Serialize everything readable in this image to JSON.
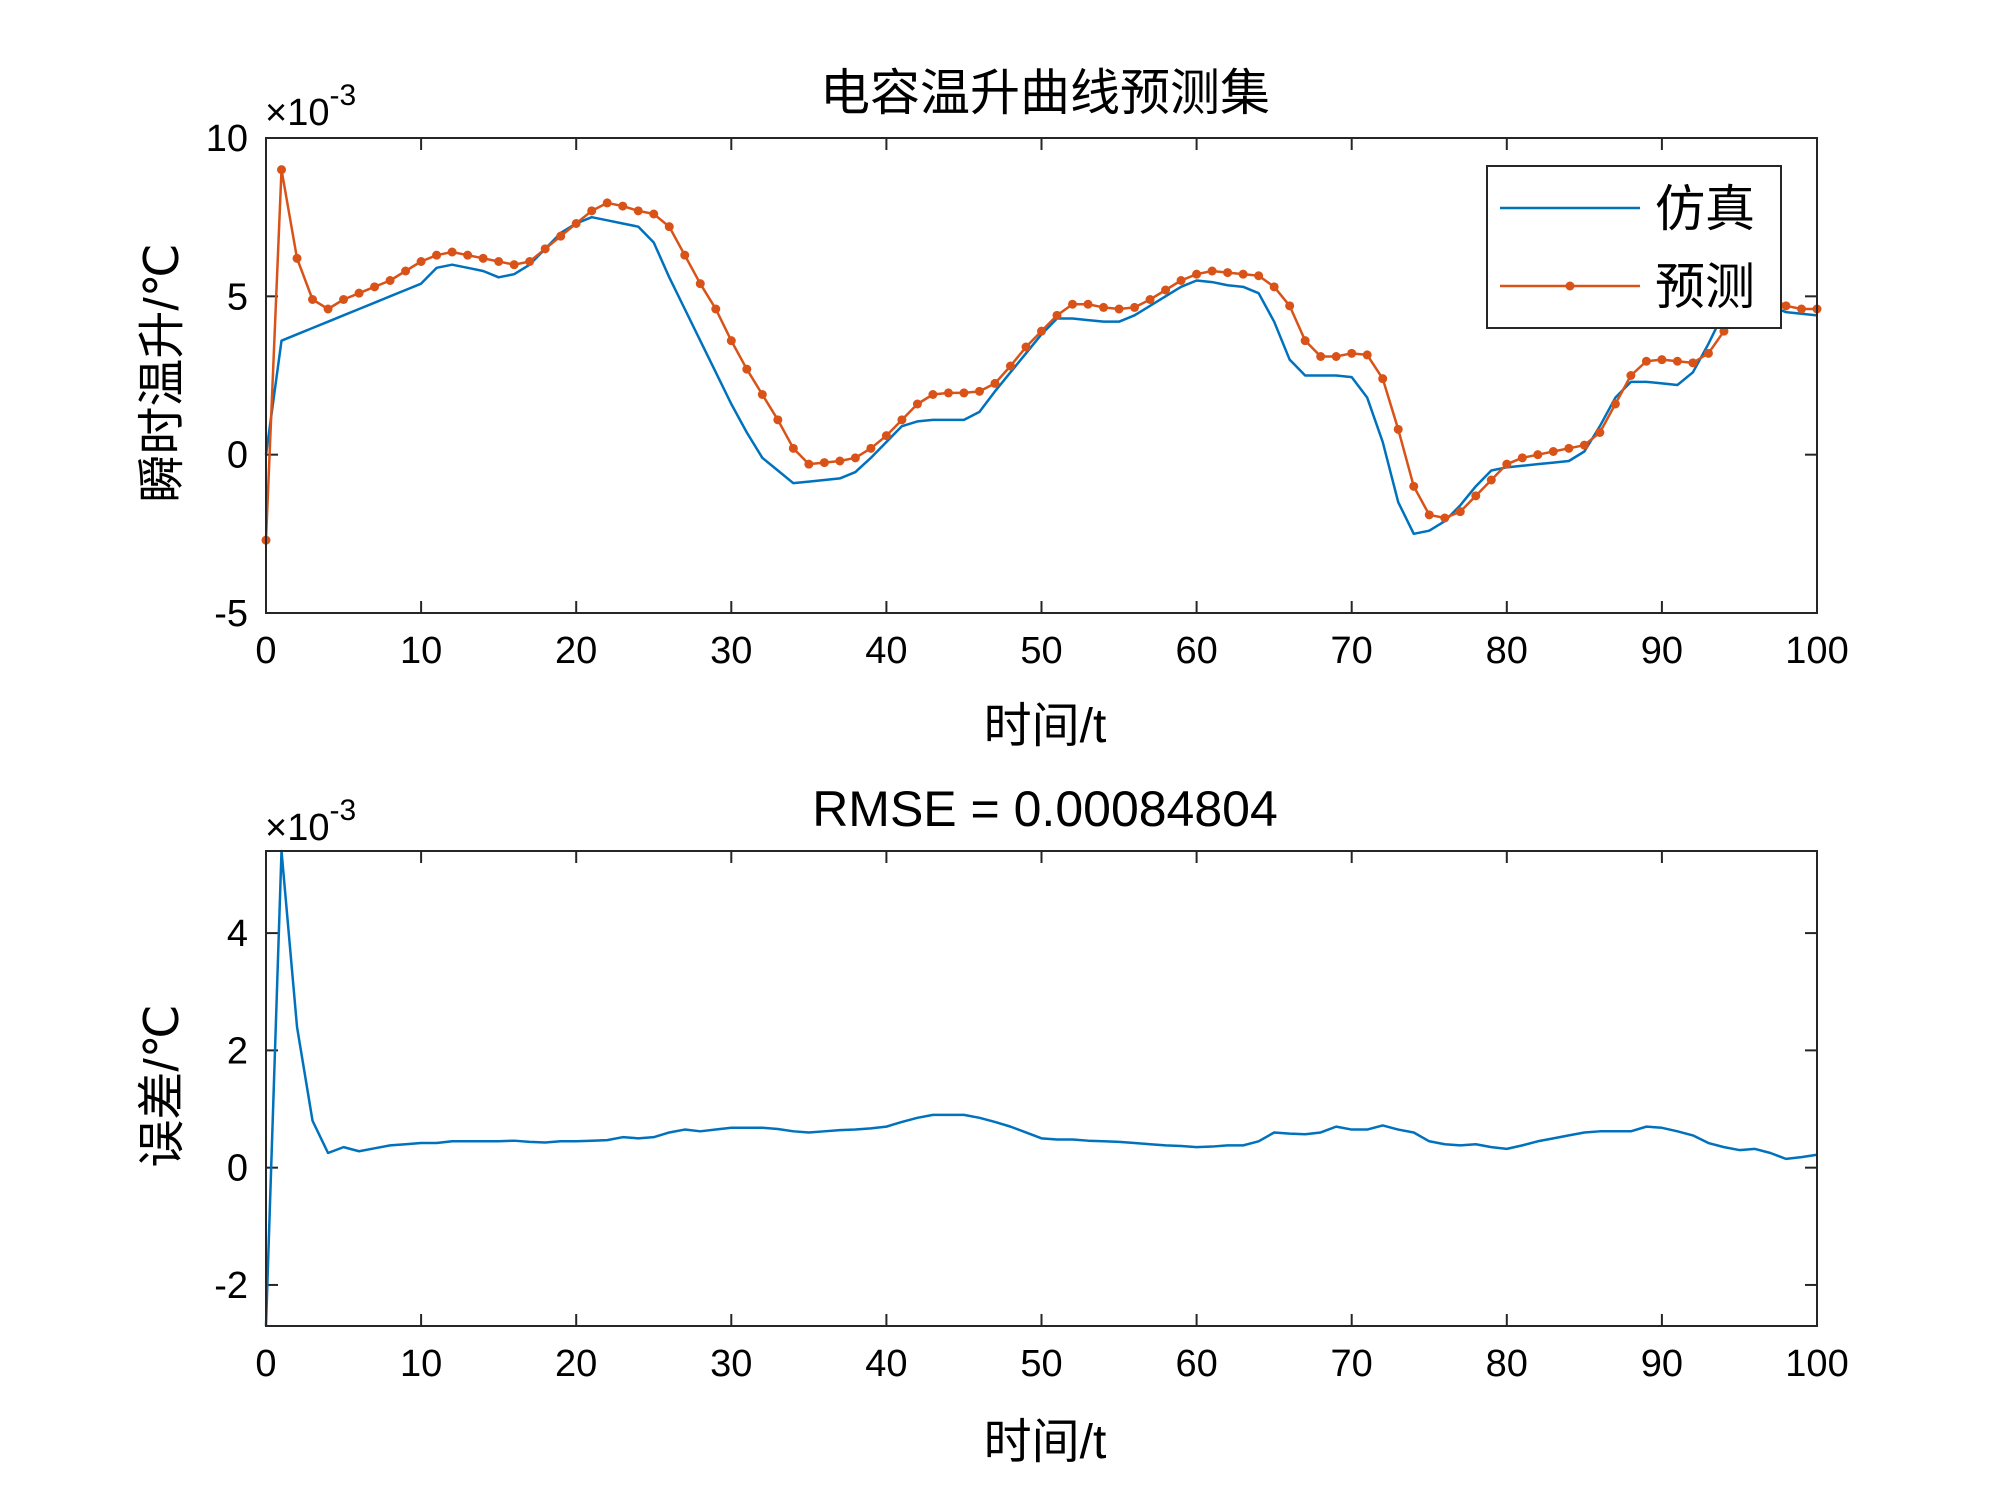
{
  "chart_data": [
    {
      "type": "line",
      "title": "电容温升曲线预测集",
      "xlabel": "时间/t",
      "ylabel": "瞬时温升/℃",
      "xlim": [
        0,
        100
      ],
      "ylim": [
        -5,
        10
      ],
      "y_scale_label": "×10",
      "y_scale_exponent": "-3",
      "xticks": [
        "0",
        "10",
        "20",
        "30",
        "40",
        "50",
        "60",
        "70",
        "80",
        "90",
        "100"
      ],
      "yticks": [
        "-5",
        "0",
        "5",
        "10"
      ],
      "legend": {
        "position": "top-right",
        "entries": [
          "仿真",
          "预测"
        ]
      },
      "x": [
        0,
        1,
        2,
        3,
        4,
        5,
        6,
        7,
        8,
        9,
        10,
        11,
        12,
        13,
        14,
        15,
        16,
        17,
        18,
        19,
        20,
        21,
        22,
        23,
        24,
        25,
        26,
        27,
        28,
        29,
        30,
        31,
        32,
        33,
        34,
        35,
        36,
        37,
        38,
        39,
        40,
        41,
        42,
        43,
        44,
        45,
        46,
        47,
        48,
        49,
        50,
        51,
        52,
        53,
        54,
        55,
        56,
        57,
        58,
        59,
        60,
        61,
        62,
        63,
        64,
        65,
        66,
        67,
        68,
        69,
        70,
        71,
        72,
        73,
        74,
        75,
        76,
        77,
        78,
        79,
        80,
        81,
        82,
        83,
        84,
        85,
        86,
        87,
        88,
        89,
        90,
        91,
        92,
        93,
        94,
        95,
        96,
        97,
        98,
        99,
        100
      ],
      "series": [
        {
          "name": "仿真",
          "color": "#0072BD",
          "values": [
            0.0,
            3.6,
            3.8,
            4.0,
            4.2,
            4.4,
            4.6,
            4.8,
            5.0,
            5.2,
            5.4,
            5.9,
            6.0,
            5.9,
            5.8,
            5.6,
            5.7,
            6.0,
            6.5,
            7.0,
            7.3,
            7.5,
            7.4,
            7.3,
            7.2,
            6.7,
            5.6,
            4.6,
            3.6,
            2.6,
            1.6,
            0.7,
            -0.1,
            -0.5,
            -0.9,
            -0.85,
            -0.8,
            -0.75,
            -0.55,
            -0.1,
            0.4,
            0.9,
            1.05,
            1.1,
            1.1,
            1.1,
            1.35,
            2.0,
            2.6,
            3.2,
            3.8,
            4.3,
            4.3,
            4.25,
            4.2,
            4.2,
            4.4,
            4.7,
            5.0,
            5.3,
            5.5,
            5.45,
            5.35,
            5.3,
            5.1,
            4.2,
            3.0,
            2.5,
            2.5,
            2.5,
            2.45,
            1.8,
            0.4,
            -1.5,
            -2.5,
            -2.4,
            -2.1,
            -1.6,
            -1.0,
            -0.5,
            -0.4,
            -0.35,
            -0.3,
            -0.25,
            -0.2,
            0.1,
            0.9,
            1.8,
            2.3,
            2.3,
            2.25,
            2.2,
            2.6,
            3.5,
            4.5,
            4.8,
            4.8,
            4.7,
            4.5,
            4.45,
            4.4
          ]
        },
        {
          "name": "预测",
          "color": "#D95319",
          "values": [
            -2.7,
            9.0,
            6.2,
            4.9,
            4.6,
            4.9,
            5.1,
            5.3,
            5.5,
            5.8,
            6.1,
            6.3,
            6.4,
            6.3,
            6.2,
            6.1,
            6.0,
            6.1,
            6.5,
            6.9,
            7.3,
            7.7,
            7.95,
            7.85,
            7.7,
            7.6,
            7.2,
            6.3,
            5.4,
            4.6,
            3.6,
            2.7,
            1.9,
            1.1,
            0.2,
            -0.3,
            -0.25,
            -0.2,
            -0.1,
            0.2,
            0.6,
            1.1,
            1.6,
            1.9,
            1.95,
            1.95,
            2.0,
            2.25,
            2.8,
            3.4,
            3.9,
            4.4,
            4.75,
            4.75,
            4.65,
            4.6,
            4.65,
            4.9,
            5.2,
            5.5,
            5.7,
            5.8,
            5.75,
            5.7,
            5.65,
            5.3,
            4.7,
            3.6,
            3.1,
            3.1,
            3.2,
            3.15,
            2.4,
            0.8,
            -1.0,
            -1.9,
            -2.0,
            -1.8,
            -1.3,
            -0.8,
            -0.3,
            -0.1,
            0.0,
            0.1,
            0.2,
            0.3,
            0.7,
            1.6,
            2.5,
            2.95,
            3.0,
            2.95,
            2.9,
            3.2,
            3.9,
            4.7,
            5.0,
            4.95,
            4.7,
            4.6,
            4.6
          ]
        }
      ]
    },
    {
      "type": "line",
      "title": "RMSE = 0.00084804",
      "xlabel": "时间/t",
      "ylabel": "误差/℃",
      "xlim": [
        0,
        100
      ],
      "ylim": [
        -2.7,
        5.4
      ],
      "y_scale_label": "×10",
      "y_scale_exponent": "-3",
      "xticks": [
        "0",
        "10",
        "20",
        "30",
        "40",
        "50",
        "60",
        "70",
        "80",
        "90",
        "100"
      ],
      "yticks": [
        "-2",
        "0",
        "2",
        "4"
      ],
      "x": [
        0,
        1,
        2,
        3,
        4,
        5,
        6,
        7,
        8,
        9,
        10,
        11,
        12,
        13,
        14,
        15,
        16,
        17,
        18,
        19,
        20,
        21,
        22,
        23,
        24,
        25,
        26,
        27,
        28,
        29,
        30,
        31,
        32,
        33,
        34,
        35,
        36,
        37,
        38,
        39,
        40,
        41,
        42,
        43,
        44,
        45,
        46,
        47,
        48,
        49,
        50,
        51,
        52,
        53,
        54,
        55,
        56,
        57,
        58,
        59,
        60,
        61,
        62,
        63,
        64,
        65,
        66,
        67,
        68,
        69,
        70,
        71,
        72,
        73,
        74,
        75,
        76,
        77,
        78,
        79,
        80,
        81,
        82,
        83,
        84,
        85,
        86,
        87,
        88,
        89,
        90,
        91,
        92,
        93,
        94,
        95,
        96,
        97,
        98,
        99,
        100
      ],
      "series": [
        {
          "name": "误差",
          "color": "#0072BD",
          "values": [
            -2.7,
            5.4,
            2.4,
            0.8,
            0.25,
            0.35,
            0.28,
            0.33,
            0.38,
            0.4,
            0.42,
            0.42,
            0.45,
            0.45,
            0.45,
            0.45,
            0.46,
            0.44,
            0.43,
            0.45,
            0.45,
            0.46,
            0.47,
            0.52,
            0.5,
            0.52,
            0.6,
            0.65,
            0.62,
            0.65,
            0.68,
            0.68,
            0.68,
            0.66,
            0.62,
            0.6,
            0.62,
            0.64,
            0.65,
            0.67,
            0.7,
            0.78,
            0.85,
            0.9,
            0.9,
            0.9,
            0.85,
            0.78,
            0.7,
            0.6,
            0.5,
            0.48,
            0.48,
            0.46,
            0.45,
            0.44,
            0.42,
            0.4,
            0.38,
            0.37,
            0.35,
            0.36,
            0.38,
            0.38,
            0.45,
            0.6,
            0.58,
            0.57,
            0.6,
            0.7,
            0.65,
            0.65,
            0.72,
            0.65,
            0.6,
            0.45,
            0.4,
            0.38,
            0.4,
            0.35,
            0.32,
            0.38,
            0.45,
            0.5,
            0.55,
            0.6,
            0.62,
            0.62,
            0.62,
            0.7,
            0.68,
            0.62,
            0.55,
            0.42,
            0.35,
            0.3,
            0.32,
            0.25,
            0.15,
            0.18,
            0.22
          ]
        }
      ]
    }
  ]
}
